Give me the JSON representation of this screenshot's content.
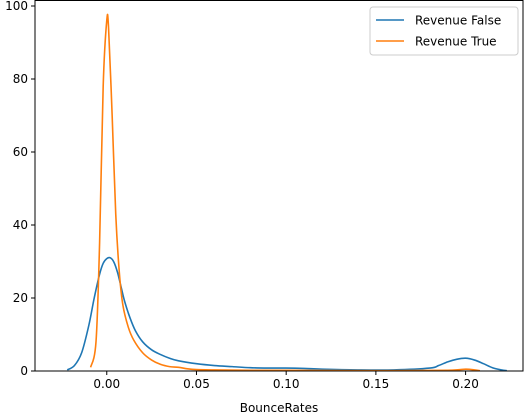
{
  "chart_data": {
    "type": "line",
    "title": "",
    "xlabel": "BounceRates",
    "ylabel": "",
    "xlim": [
      -0.04,
      0.232
    ],
    "ylim": [
      0,
      100
    ],
    "xticks": [
      0.0,
      0.05,
      0.1,
      0.15,
      0.2
    ],
    "xtick_labels": [
      "0.00",
      "0.05",
      "0.10",
      "0.15",
      "0.20"
    ],
    "yticks": [
      0,
      20,
      40,
      60,
      80,
      100
    ],
    "ytick_labels": [
      "0",
      "20",
      "40",
      "60",
      "80",
      "100"
    ],
    "grid": false,
    "legend_position": "top-right",
    "series": [
      {
        "name": "Revenue False",
        "color": "#1f77b4",
        "x": [
          -0.022,
          -0.018,
          -0.014,
          -0.01,
          -0.007,
          -0.004,
          -0.002,
          0.0,
          0.002,
          0.004,
          0.006,
          0.008,
          0.01,
          0.013,
          0.016,
          0.02,
          0.025,
          0.03,
          0.035,
          0.04,
          0.05,
          0.06,
          0.07,
          0.08,
          0.09,
          0.1,
          0.11,
          0.12,
          0.14,
          0.16,
          0.18,
          0.185,
          0.19,
          0.195,
          0.2,
          0.205,
          0.21,
          0.215,
          0.22,
          0.223
        ],
        "y": [
          0.3,
          1.5,
          5.0,
          12.5,
          20.0,
          26.5,
          29.5,
          30.8,
          31.0,
          29.8,
          27.0,
          23.0,
          19.0,
          14.5,
          11.0,
          8.0,
          5.8,
          4.5,
          3.5,
          2.8,
          2.0,
          1.5,
          1.2,
          0.9,
          0.8,
          0.8,
          0.7,
          0.5,
          0.3,
          0.3,
          0.8,
          1.5,
          2.5,
          3.2,
          3.5,
          3.0,
          2.0,
          0.9,
          0.3,
          0.1
        ]
      },
      {
        "name": "Revenue True",
        "color": "#ff7f0e",
        "x": [
          -0.009,
          -0.006,
          -0.004,
          -0.002,
          0.0,
          0.001,
          0.003,
          0.005,
          0.007,
          0.009,
          0.012,
          0.015,
          0.02,
          0.025,
          0.03,
          0.035,
          0.04,
          0.045,
          0.05,
          0.06,
          0.08,
          0.1,
          0.15,
          0.19,
          0.2,
          0.205,
          0.208
        ],
        "y": [
          1.0,
          8.0,
          35.0,
          78.0,
          96.0,
          94.0,
          70.0,
          43.0,
          27.0,
          18.0,
          12.0,
          8.5,
          5.0,
          3.0,
          1.8,
          1.2,
          1.0,
          0.6,
          0.4,
          0.3,
          0.2,
          0.2,
          0.1,
          0.2,
          0.5,
          0.3,
          0.1
        ]
      }
    ]
  }
}
